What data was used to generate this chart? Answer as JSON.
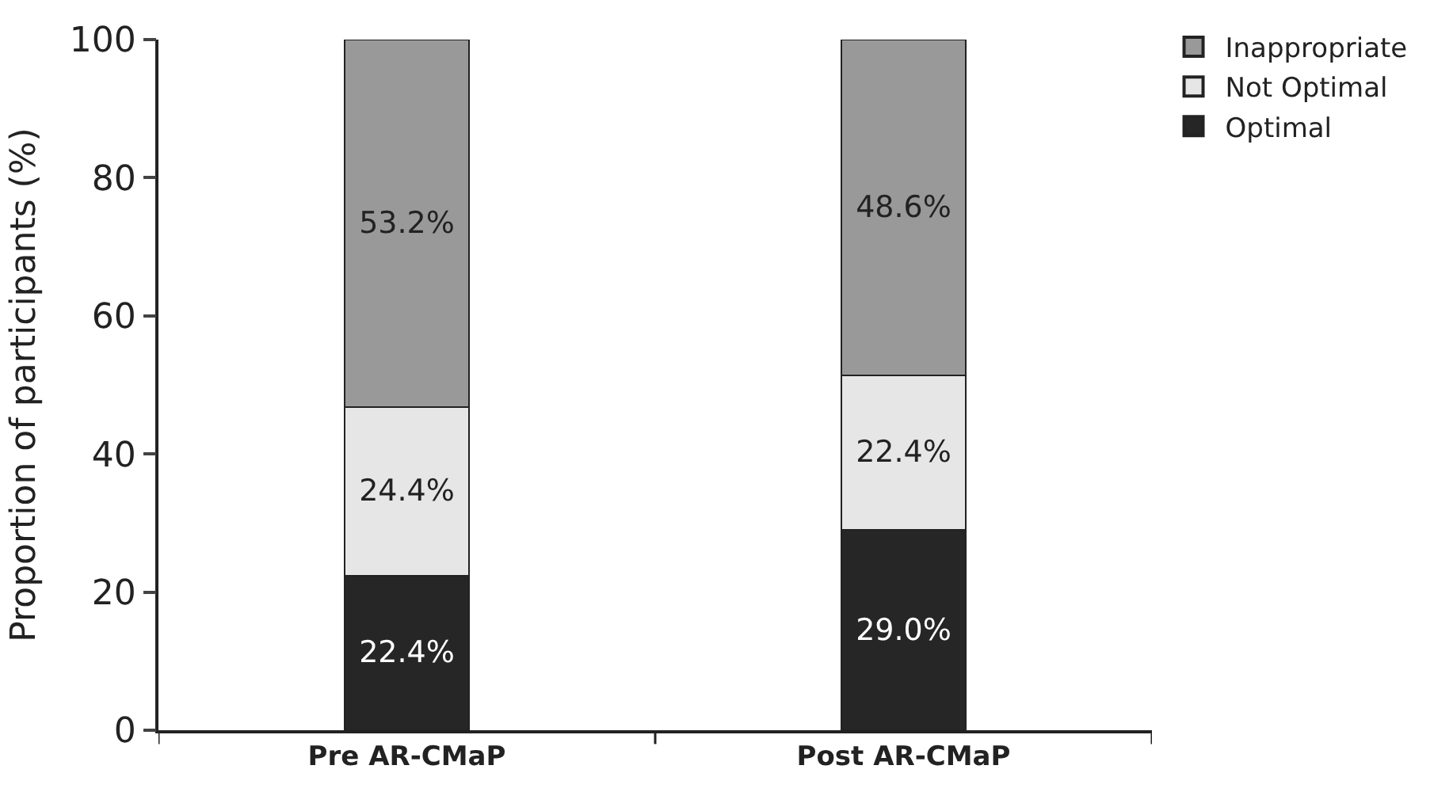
{
  "chart_data": {
    "type": "bar",
    "stacked": true,
    "ylabel": "Proportion of participants (%)",
    "categories": [
      "Pre AR-CMaP",
      "Post AR-CMaP"
    ],
    "series": [
      {
        "name": "Optimal",
        "color": "#262626",
        "values": [
          22.4,
          29.0
        ],
        "value_labels": [
          "22.4%",
          "29.0%"
        ]
      },
      {
        "name": "Not Optimal",
        "color": "#e6e6e6",
        "values": [
          24.4,
          22.4
        ],
        "value_labels": [
          "24.4%",
          "22.4%"
        ]
      },
      {
        "name": "Inappropriate",
        "color": "#999999",
        "values": [
          53.2,
          48.6
        ],
        "value_labels": [
          "53.2%",
          "48.6%"
        ]
      }
    ],
    "ylim": [
      0,
      100
    ],
    "yticks": [
      0,
      20,
      40,
      60,
      80,
      100
    ],
    "legend": "top right"
  }
}
